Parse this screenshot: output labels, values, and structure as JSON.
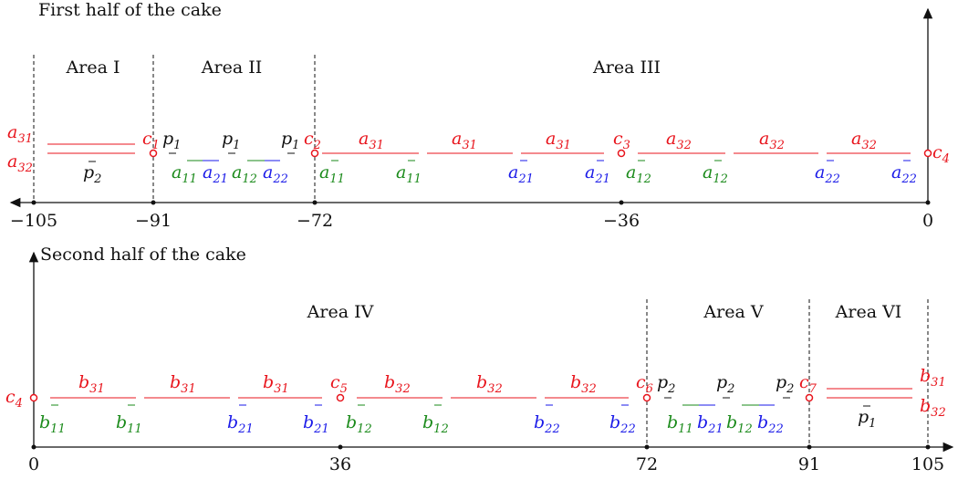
{
  "top": {
    "title": "First half of the cake",
    "areas": [
      "Area I",
      "Area II",
      "Area III"
    ],
    "ticks": [
      "−105",
      "−91",
      "−72",
      "−36",
      "0"
    ],
    "cuts": {
      "c1": "c",
      "c1_sub": "1",
      "c2": "c",
      "c2_sub": "2",
      "c3": "c",
      "c3_sub": "3",
      "c4": "c",
      "c4_sub": "4"
    },
    "left_labels": [
      {
        "base": "a",
        "sub": "31"
      },
      {
        "base": "a",
        "sub": "32"
      }
    ],
    "bar_label": {
      "base": "p",
      "sub": "2"
    }
  },
  "bottom": {
    "title": "Second half of the cake",
    "areas": [
      "Area IV",
      "Area V",
      "Area VI"
    ],
    "ticks": [
      "0",
      "36",
      "72",
      "91",
      "105"
    ],
    "cuts": {
      "c4": "c",
      "c4_sub": "4",
      "c5": "c",
      "c5_sub": "5",
      "c6": "c",
      "c6_sub": "6",
      "c7": "c",
      "c7_sub": "7"
    },
    "right_labels": [
      {
        "base": "b",
        "sub": "31"
      },
      {
        "base": "b",
        "sub": "32"
      }
    ],
    "bar_label": {
      "base": "p",
      "sub": "1"
    }
  },
  "colors": {
    "red": "#e8141c",
    "green": "#1a8a1a",
    "blue": "#1a1ae8",
    "black": "#111111"
  }
}
